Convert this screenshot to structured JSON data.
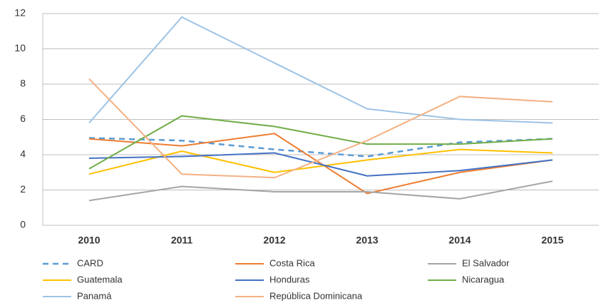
{
  "chart_data": {
    "type": "line",
    "categories": [
      "2010",
      "2011",
      "2012",
      "2013",
      "2014",
      "2015"
    ],
    "ylim": [
      0,
      12
    ],
    "yticks": [
      0,
      2,
      4,
      6,
      8,
      10,
      12
    ],
    "grid": true,
    "series": [
      {
        "name": "CARD",
        "color": "#5b9bd5",
        "dashed": true,
        "values": [
          4.95,
          4.8,
          4.3,
          3.9,
          4.7,
          4.9
        ]
      },
      {
        "name": "Costa Rica",
        "color": "#ed7d31",
        "values": [
          4.9,
          4.5,
          5.2,
          1.8,
          3.0,
          3.7
        ]
      },
      {
        "name": "El Salvador",
        "color": "#a5a5a5",
        "values": [
          1.4,
          2.2,
          1.9,
          1.9,
          1.5,
          2.5
        ]
      },
      {
        "name": "Guatemala",
        "color": "#ffc000",
        "values": [
          2.9,
          4.2,
          3.0,
          3.7,
          4.3,
          4.1
        ]
      },
      {
        "name": "Honduras",
        "color": "#4472c4",
        "values": [
          3.8,
          3.9,
          4.1,
          2.8,
          3.1,
          3.7
        ]
      },
      {
        "name": "Nicaragua",
        "color": "#70ad47",
        "values": [
          3.2,
          6.2,
          5.6,
          4.6,
          4.6,
          4.9
        ]
      },
      {
        "name": "Panamá",
        "color": "#9dc3e6",
        "values": [
          5.8,
          11.8,
          9.2,
          6.6,
          6.0,
          5.8
        ]
      },
      {
        "name": "República Dominicana",
        "color": "#f4b183",
        "values": [
          8.3,
          2.9,
          2.7,
          4.8,
          7.3,
          7.0
        ]
      }
    ]
  }
}
